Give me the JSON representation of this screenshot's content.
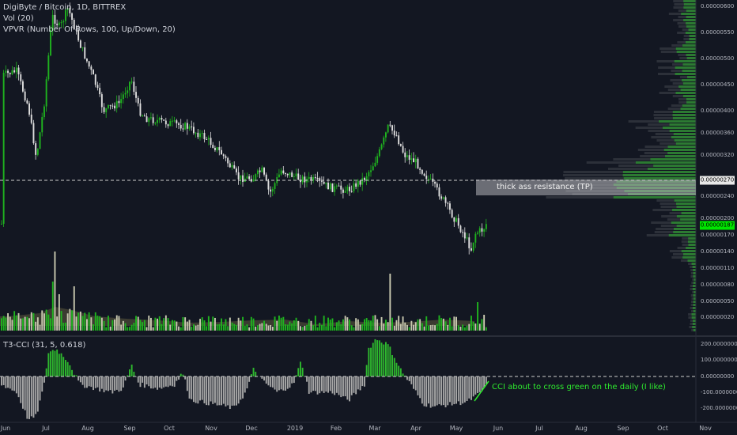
{
  "legend": {
    "main": "DigiByte / Bitcoin, 1D, BITTREX",
    "vol": "Vol (20)",
    "vpvr": "VPVR (Number Of Rows, 100, Up/Down, 20)",
    "indicator": "T3-CCI (31, 5, 0.618)"
  },
  "price_axis": [
    "0.00000600",
    "0.00000550",
    "0.00000500",
    "0.00000450",
    "0.00000400",
    "0.00000360",
    "0.00000320",
    "0.00000270",
    "0.00000240",
    "0.00000200",
    "0.00000170",
    "0.00000140",
    "0.00000110",
    "0.00000080",
    "0.00000050",
    "0.00000020"
  ],
  "current_tags": {
    "resistance": "0.00000270",
    "last": "0.00000187"
  },
  "cci_axis": [
    "200.00000000",
    "100.00000000",
    "0.00000000",
    "-100.00000000",
    "-200.00000000"
  ],
  "time_axis": [
    "Jun",
    "Jul",
    "Aug",
    "Sep",
    "Oct",
    "Nov",
    "Dec",
    "2019",
    "Feb",
    "Mar",
    "Apr",
    "May",
    "Jun",
    "Jul",
    "Aug",
    "Sep",
    "Oct",
    "Nov"
  ],
  "annotations": {
    "resistance": "thick ass resistance (TP)",
    "cci": "CCI about to cross green on the daily (I like)"
  },
  "colors": {
    "background": "#131722",
    "up": "#1fb31f",
    "down": "#dedede",
    "cci_up": "#2eb82e",
    "cci_down": "#a8a8a8",
    "vpvr": "#2eb82e",
    "accent": "#00e600"
  }
}
